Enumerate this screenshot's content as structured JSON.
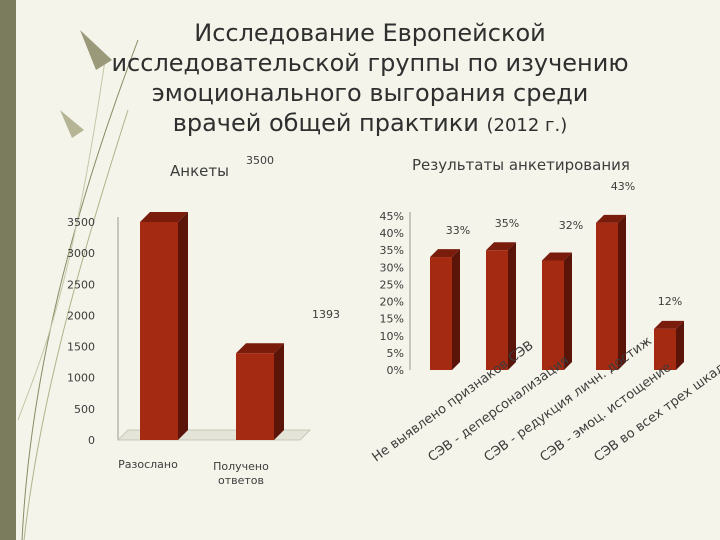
{
  "slide": {
    "title": "Исследование Европейской исследовательской группы по изучению эмоционального выгорания среди врачей общей практики",
    "title_year": "(2012 г.)",
    "colors": {
      "bar_front": "#a52a12",
      "bar_side": "#5a1408",
      "bar_top": "#7a1c0c",
      "background": "#f4f4ea",
      "band": "#7b7b5e"
    }
  },
  "chart_data": [
    {
      "type": "bar",
      "title": "Анкеты",
      "categories": [
        "Разослано",
        "Получено ответов"
      ],
      "values": [
        3500,
        1393
      ],
      "data_labels": [
        "3500",
        "1393"
      ],
      "ylim": [
        0,
        3500
      ],
      "yticks": [
        "0",
        "500",
        "1000",
        "1500",
        "2000",
        "2500",
        "3000",
        "3500"
      ],
      "grid": false,
      "legend": "none"
    },
    {
      "type": "bar",
      "title": "Результаты анкетирования",
      "categories": [
        "Не выявлено признаков СЭВ",
        "СЭВ - деперсонализация",
        "СЭВ - редукция личн. достиж",
        "СЭВ - эмоц. истощение",
        "СЭВ во всех трех шкалах"
      ],
      "values": [
        33,
        35,
        32,
        43,
        12
      ],
      "data_labels": [
        "33%",
        "35%",
        "32%",
        "43%",
        "12%"
      ],
      "ylim": [
        0,
        45
      ],
      "yticks": [
        "0%",
        "5%",
        "10%",
        "15%",
        "20%",
        "25%",
        "30%",
        "35%",
        "40%",
        "45%"
      ],
      "grid": false,
      "legend": "none"
    }
  ]
}
